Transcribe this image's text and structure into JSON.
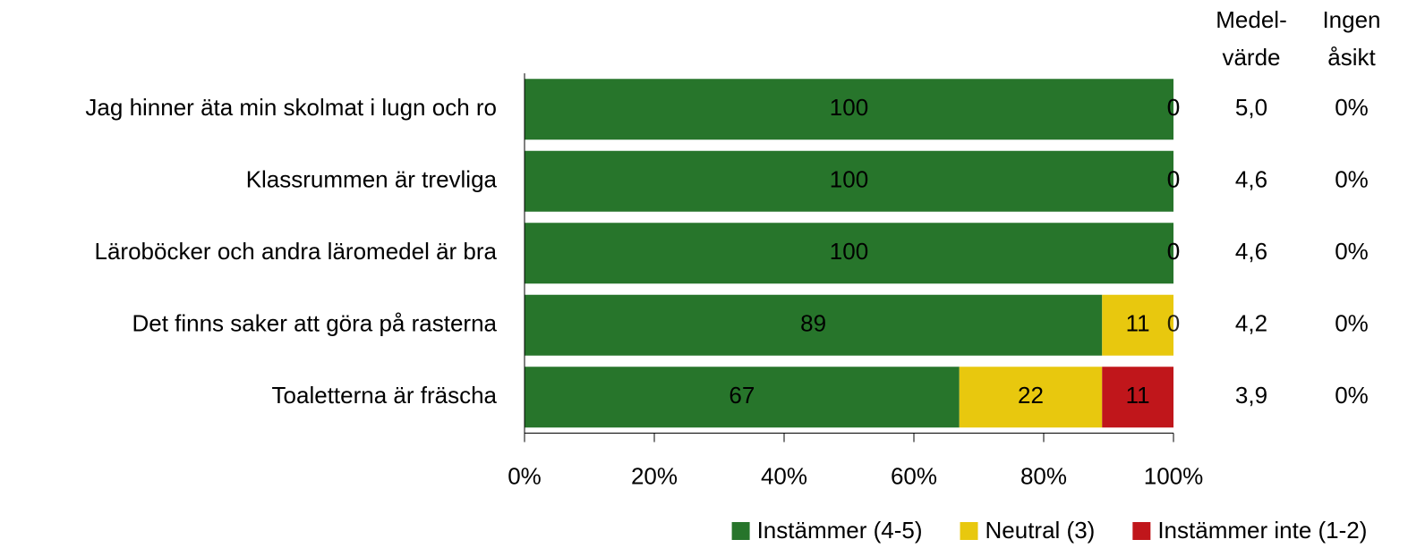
{
  "chart_data": {
    "type": "stacked-barh",
    "categories": [
      "Jag hinner äta min skolmat i lugn och ro",
      "Klassrummen är trevliga",
      "Läroböcker och andra läromedel är bra",
      "Det finns saker att göra på rasterna",
      "Toaletterna är fräscha"
    ],
    "series": [
      {
        "name": "Instämmer (4-5)",
        "color": "#27752b",
        "label_color": "#ffffff",
        "values": [
          100,
          100,
          100,
          89,
          67
        ]
      },
      {
        "name": "Neutral (3)",
        "color": "#e8c80e",
        "label_color": "#000000",
        "values": [
          0,
          0,
          0,
          11,
          22
        ]
      },
      {
        "name": "Instämmer inte (1-2)",
        "color": "#c0161b",
        "label_color": "#ffffff",
        "values": [
          0,
          0,
          0,
          0,
          11
        ]
      }
    ],
    "xlim": [
      0,
      100
    ],
    "xticks": [
      {
        "value": 0,
        "label": "0%"
      },
      {
        "value": 20,
        "label": "20%"
      },
      {
        "value": 40,
        "label": "40%"
      },
      {
        "value": 60,
        "label": "60%"
      },
      {
        "value": 80,
        "label": "80%"
      },
      {
        "value": 100,
        "label": "100%"
      }
    ],
    "legend": "bottom",
    "columns": [
      {
        "header": [
          "Medel-",
          "värde"
        ],
        "values": [
          "5,0",
          "4,6",
          "4,6",
          "4,2",
          "3,9"
        ]
      },
      {
        "header": [
          "Ingen",
          "åsikt"
        ],
        "values": [
          "0%",
          "0%",
          "0%",
          "0%",
          "0%"
        ]
      }
    ]
  }
}
